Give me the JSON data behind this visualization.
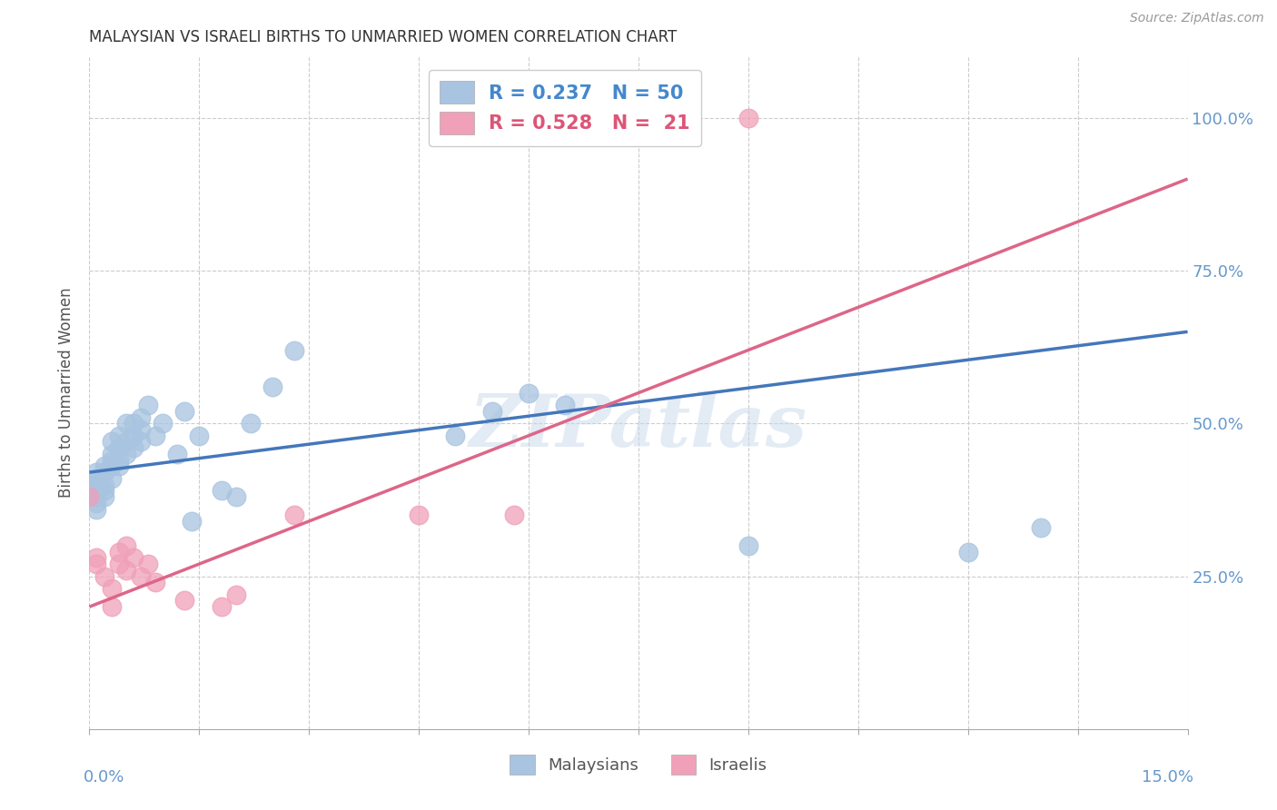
{
  "title": "MALAYSIAN VS ISRAELI BIRTHS TO UNMARRIED WOMEN CORRELATION CHART",
  "source": "Source: ZipAtlas.com",
  "ylabel": "Births to Unmarried Women",
  "watermark": "ZIPatlas",
  "legend_1_label": "Malaysians",
  "legend_2_label": "Israelis",
  "R_blue": 0.237,
  "N_blue": 50,
  "R_pink": 0.528,
  "N_pink": 21,
  "blue_color": "#a8c4e0",
  "pink_color": "#f0a0b8",
  "blue_line_color": "#4477bb",
  "pink_line_color": "#dd6688",
  "background_color": "#ffffff",
  "grid_color": "#cccccc",
  "title_color": "#333333",
  "axis_label_color": "#6699cc",
  "ytick_labels": [
    "100.0%",
    "75.0%",
    "50.0%",
    "25.0%"
  ],
  "ytick_values": [
    1.0,
    0.75,
    0.5,
    0.25
  ],
  "xlim": [
    0.0,
    0.15
  ],
  "ylim": [
    0.0,
    1.1
  ],
  "blue_x": [
    0.0,
    0.0,
    0.001,
    0.001,
    0.001,
    0.001,
    0.001,
    0.001,
    0.002,
    0.002,
    0.002,
    0.002,
    0.002,
    0.003,
    0.003,
    0.003,
    0.003,
    0.003,
    0.004,
    0.004,
    0.004,
    0.004,
    0.005,
    0.005,
    0.005,
    0.006,
    0.006,
    0.006,
    0.007,
    0.007,
    0.007,
    0.008,
    0.009,
    0.01,
    0.012,
    0.013,
    0.014,
    0.015,
    0.018,
    0.02,
    0.022,
    0.025,
    0.028,
    0.05,
    0.055,
    0.06,
    0.065,
    0.09,
    0.12,
    0.13
  ],
  "blue_y": [
    0.38,
    0.4,
    0.38,
    0.4,
    0.41,
    0.42,
    0.37,
    0.36,
    0.38,
    0.39,
    0.4,
    0.42,
    0.43,
    0.41,
    0.43,
    0.44,
    0.45,
    0.47,
    0.43,
    0.44,
    0.46,
    0.48,
    0.45,
    0.47,
    0.5,
    0.46,
    0.48,
    0.5,
    0.47,
    0.49,
    0.51,
    0.53,
    0.48,
    0.5,
    0.45,
    0.52,
    0.34,
    0.48,
    0.39,
    0.38,
    0.5,
    0.56,
    0.62,
    0.48,
    0.52,
    0.55,
    0.53,
    0.3,
    0.29,
    0.33
  ],
  "pink_x": [
    0.0,
    0.001,
    0.001,
    0.002,
    0.003,
    0.003,
    0.004,
    0.004,
    0.005,
    0.005,
    0.006,
    0.007,
    0.008,
    0.009,
    0.013,
    0.018,
    0.02,
    0.028,
    0.045,
    0.058,
    0.09
  ],
  "pink_y": [
    0.38,
    0.28,
    0.27,
    0.25,
    0.23,
    0.2,
    0.27,
    0.29,
    0.26,
    0.3,
    0.28,
    0.25,
    0.27,
    0.24,
    0.21,
    0.2,
    0.22,
    0.35,
    0.35,
    0.35,
    1.0
  ],
  "blue_line_x": [
    0.0,
    0.15
  ],
  "blue_line_y": [
    0.42,
    0.65
  ],
  "pink_line_x": [
    0.0,
    0.15
  ],
  "pink_line_y": [
    0.2,
    0.9
  ]
}
